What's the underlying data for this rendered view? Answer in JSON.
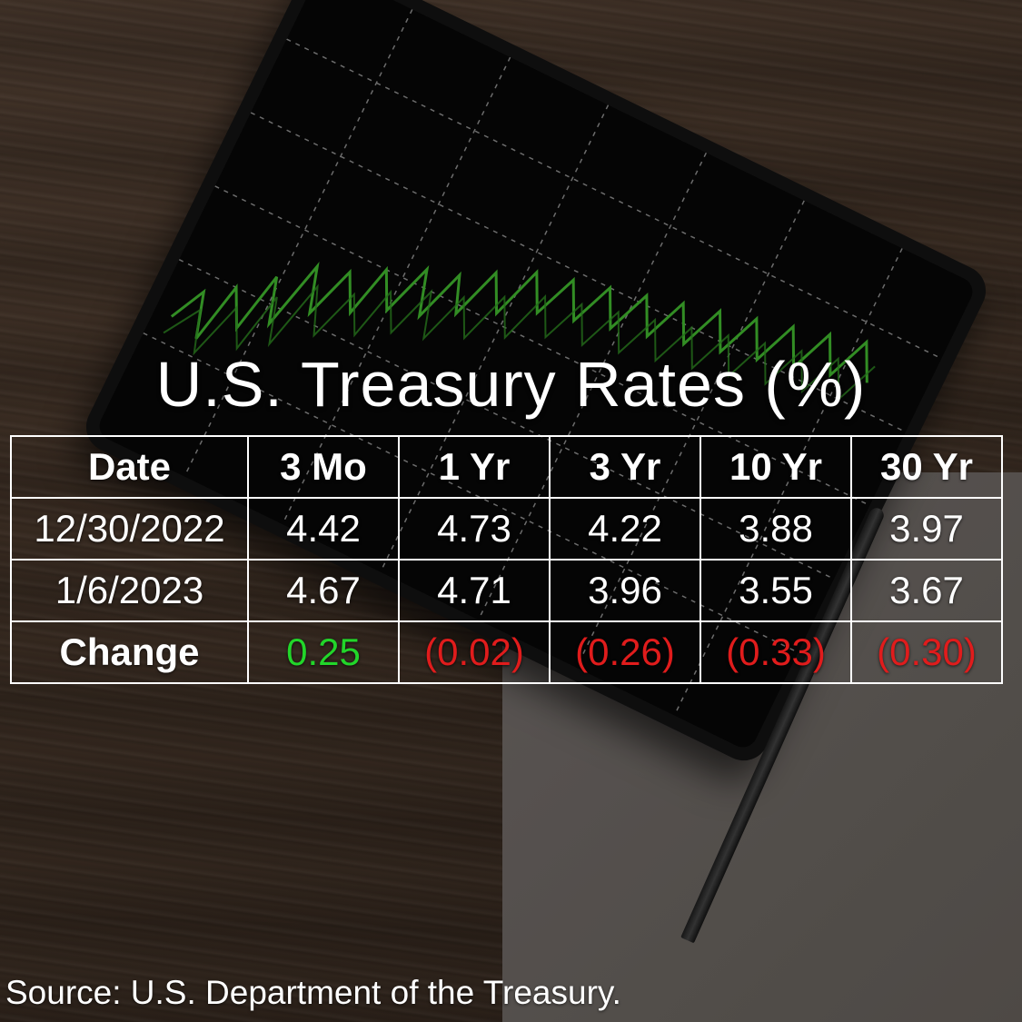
{
  "chart_data": {
    "type": "table",
    "title": "U.S. Treasury Rates (%)",
    "columns": [
      "Date",
      "3 Mo",
      "1 Yr",
      "3 Yr",
      "10 Yr",
      "30 Yr"
    ],
    "rows": [
      {
        "label": "12/30/2022",
        "cells": [
          "4.42",
          "4.73",
          "4.22",
          "3.88",
          "3.97"
        ]
      },
      {
        "label": "1/6/2023",
        "cells": [
          "4.67",
          "4.71",
          "3.96",
          "3.55",
          "3.67"
        ]
      },
      {
        "label": "Change",
        "cells": [
          "0.25",
          "(0.02)",
          "(0.26)",
          "(0.33)",
          "(0.30)"
        ]
      }
    ],
    "change_colors": {
      "positive": "#22d62a",
      "negative": "#e01c1c"
    }
  },
  "source": "Source: U.S. Department of the Treasury."
}
